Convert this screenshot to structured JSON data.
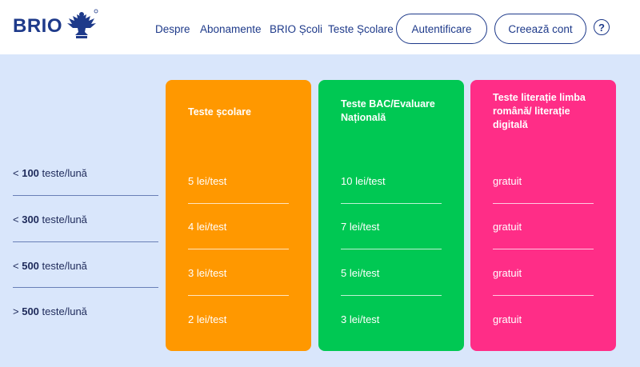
{
  "header": {
    "logo_text": "BRIO",
    "logo_icon": "eagle-emblem",
    "nav": [
      "Despre",
      "Abonamente",
      "BRIO Școli",
      "Teste Școlare"
    ],
    "login_label": "Autentificare",
    "register_label": "Creează cont",
    "help_icon": "question-icon",
    "help_glyph": "?"
  },
  "tiers": [
    {
      "prefix": "<",
      "count": "100",
      "unit": " teste/lună"
    },
    {
      "prefix": "<",
      "count": "300",
      "unit": " teste/lună"
    },
    {
      "prefix": "<",
      "count": "500",
      "unit": " teste/lună"
    },
    {
      "prefix": ">",
      "count": "500",
      "unit": " teste/lună"
    }
  ],
  "cards": [
    {
      "title": "Teste școlare",
      "color": "#ff9800",
      "prices": [
        "5 lei/test",
        "4 lei/test",
        "3 lei/test",
        "2 lei/test"
      ]
    },
    {
      "title": "Teste BAC/Evaluare Națională",
      "color": "#00c853",
      "prices": [
        "10 lei/test",
        "7 lei/test",
        "5 lei/test",
        "3 lei/test"
      ]
    },
    {
      "title": "Teste literație limba română/ literație digitală",
      "color": "#ff2d87",
      "prices": [
        "gratuit",
        "gratuit",
        "gratuit",
        "gratuit"
      ]
    }
  ],
  "colors": {
    "brand": "#1e3a8a",
    "background": "#d9e6fb"
  }
}
